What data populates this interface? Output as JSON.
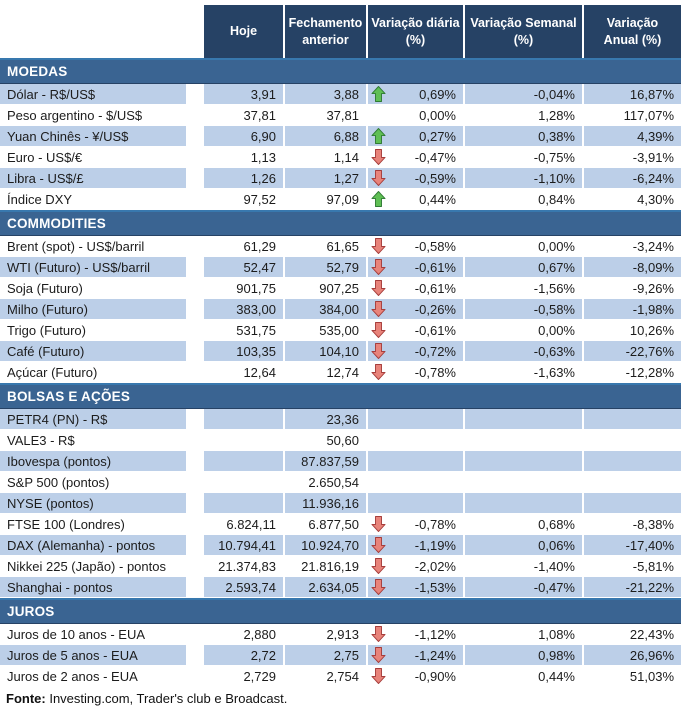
{
  "header": {
    "columns": [
      "Hoje",
      "Fechamento\nanterior",
      "Variação diária\n(%)",
      "Variação Semanal\n(%)",
      "Variação\nAnual (%)"
    ]
  },
  "sections": [
    {
      "title": "MOEDAS",
      "rows": [
        {
          "label": "Dólar - R$/US$",
          "hoje": "3,91",
          "fechamento": "3,88",
          "arrow": "up",
          "var_diaria": "0,69%",
          "var_semanal": "-0,04%",
          "var_anual": "16,87%",
          "striped": true
        },
        {
          "label": "Peso argentino - $/US$",
          "hoje": "37,81",
          "fechamento": "37,81",
          "arrow": "none",
          "var_diaria": "0,00%",
          "var_semanal": "1,28%",
          "var_anual": "117,07%",
          "striped": false
        },
        {
          "label": "Yuan Chinês - ¥/US$",
          "hoje": "6,90",
          "fechamento": "6,88",
          "arrow": "up",
          "var_diaria": "0,27%",
          "var_semanal": "0,38%",
          "var_anual": "4,39%",
          "striped": true
        },
        {
          "label": "Euro - US$/€",
          "hoje": "1,13",
          "fechamento": "1,14",
          "arrow": "down",
          "var_diaria": "-0,47%",
          "var_semanal": "-0,75%",
          "var_anual": "-3,91%",
          "striped": false
        },
        {
          "label": "Libra - US$/£",
          "hoje": "1,26",
          "fechamento": "1,27",
          "arrow": "down",
          "var_diaria": "-0,59%",
          "var_semanal": "-1,10%",
          "var_anual": "-6,24%",
          "striped": true
        },
        {
          "label": "Índice DXY",
          "hoje": "97,52",
          "fechamento": "97,09",
          "arrow": "up",
          "var_diaria": "0,44%",
          "var_semanal": "0,84%",
          "var_anual": "4,30%",
          "striped": false
        }
      ]
    },
    {
      "title": "COMMODITIES",
      "rows": [
        {
          "label": "Brent (spot) - US$/barril",
          "hoje": "61,29",
          "fechamento": "61,65",
          "arrow": "down",
          "var_diaria": "-0,58%",
          "var_semanal": "0,00%",
          "var_anual": "-3,24%",
          "striped": false
        },
        {
          "label": "WTI (Futuro) - US$/barril",
          "hoje": "52,47",
          "fechamento": "52,79",
          "arrow": "down",
          "var_diaria": "-0,61%",
          "var_semanal": "0,67%",
          "var_anual": "-8,09%",
          "striped": true
        },
        {
          "label": "Soja (Futuro)",
          "hoje": "901,75",
          "fechamento": "907,25",
          "arrow": "down",
          "var_diaria": "-0,61%",
          "var_semanal": "-1,56%",
          "var_anual": "-9,26%",
          "striped": false
        },
        {
          "label": "Milho (Futuro)",
          "hoje": "383,00",
          "fechamento": "384,00",
          "arrow": "down",
          "var_diaria": "-0,26%",
          "var_semanal": "-0,58%",
          "var_anual": "-1,98%",
          "striped": true
        },
        {
          "label": "Trigo (Futuro)",
          "hoje": "531,75",
          "fechamento": "535,00",
          "arrow": "down",
          "var_diaria": "-0,61%",
          "var_semanal": "0,00%",
          "var_anual": "10,26%",
          "striped": false
        },
        {
          "label": "Café (Futuro)",
          "hoje": "103,35",
          "fechamento": "104,10",
          "arrow": "down",
          "var_diaria": "-0,72%",
          "var_semanal": "-0,63%",
          "var_anual": "-22,76%",
          "striped": true
        },
        {
          "label": "Açúcar (Futuro)",
          "hoje": "12,64",
          "fechamento": "12,74",
          "arrow": "down",
          "var_diaria": "-0,78%",
          "var_semanal": "-1,63%",
          "var_anual": "-12,28%",
          "striped": false
        }
      ]
    },
    {
      "title": "BOLSAS E AÇÕES",
      "rows": [
        {
          "label": "PETR4 (PN) - R$",
          "hoje": "",
          "fechamento": "23,36",
          "arrow": "none",
          "var_diaria": "",
          "var_semanal": "",
          "var_anual": "",
          "striped": true
        },
        {
          "label": "VALE3 - R$",
          "hoje": "",
          "fechamento": "50,60",
          "arrow": "none",
          "var_diaria": "",
          "var_semanal": "",
          "var_anual": "",
          "striped": false
        },
        {
          "label": "Ibovespa (pontos)",
          "hoje": "",
          "fechamento": "87.837,59",
          "arrow": "none",
          "var_diaria": "",
          "var_semanal": "",
          "var_anual": "",
          "striped": true
        },
        {
          "label": "S&P 500 (pontos)",
          "hoje": "",
          "fechamento": "2.650,54",
          "arrow": "none",
          "var_diaria": "",
          "var_semanal": "",
          "var_anual": "",
          "striped": false
        },
        {
          "label": "NYSE (pontos)",
          "hoje": "",
          "fechamento": "11.936,16",
          "arrow": "none",
          "var_diaria": "",
          "var_semanal": "",
          "var_anual": "",
          "striped": true
        },
        {
          "label": "FTSE 100 (Londres)",
          "hoje": "6.824,11",
          "fechamento": "6.877,50",
          "arrow": "down",
          "var_diaria": "-0,78%",
          "var_semanal": "0,68%",
          "var_anual": "-8,38%",
          "striped": false
        },
        {
          "label": "DAX (Alemanha) - pontos",
          "hoje": "10.794,41",
          "fechamento": "10.924,70",
          "arrow": "down",
          "var_diaria": "-1,19%",
          "var_semanal": "0,06%",
          "var_anual": "-17,40%",
          "striped": true
        },
        {
          "label": "Nikkei 225 (Japão) - pontos",
          "hoje": "21.374,83",
          "fechamento": "21.816,19",
          "arrow": "down",
          "var_diaria": "-2,02%",
          "var_semanal": "-1,40%",
          "var_anual": "-5,81%",
          "striped": false
        },
        {
          "label": "Shanghai - pontos",
          "hoje": "2.593,74",
          "fechamento": "2.634,05",
          "arrow": "down",
          "var_diaria": "-1,53%",
          "var_semanal": "-0,47%",
          "var_anual": "-21,22%",
          "striped": true
        }
      ]
    },
    {
      "title": "JUROS",
      "rows": [
        {
          "label": "Juros de 10 anos - EUA",
          "hoje": "2,880",
          "fechamento": "2,913",
          "arrow": "down",
          "var_diaria": "-1,12%",
          "var_semanal": "1,08%",
          "var_anual": "22,43%",
          "striped": false
        },
        {
          "label": "Juros de 5 anos - EUA",
          "hoje": "2,72",
          "fechamento": "2,75",
          "arrow": "down",
          "var_diaria": "-1,24%",
          "var_semanal": "0,98%",
          "var_anual": "26,96%",
          "striped": true
        },
        {
          "label": "Juros de 2 anos - EUA",
          "hoje": "2,729",
          "fechamento": "2,754",
          "arrow": "down",
          "var_diaria": "-0,90%",
          "var_semanal": "0,44%",
          "var_anual": "51,03%",
          "striped": false
        }
      ]
    }
  ],
  "footer": {
    "source_label": "Fonte:",
    "source_text": " Investing.com, Trader's club e Broadcast."
  },
  "colors": {
    "header_bg": "#264265",
    "band_bg": "#3A6492",
    "band_top": "#3878AE",
    "stripe_bg": "#BCCFE8",
    "up_arrow_fill": "#5FBF54",
    "up_arrow_stroke": "#2F7A33",
    "down_arrow_fill": "#E8837A",
    "down_arrow_stroke": "#A63D3B"
  },
  "icons": {
    "up": "up-arrow-icon",
    "down": "down-arrow-icon"
  }
}
